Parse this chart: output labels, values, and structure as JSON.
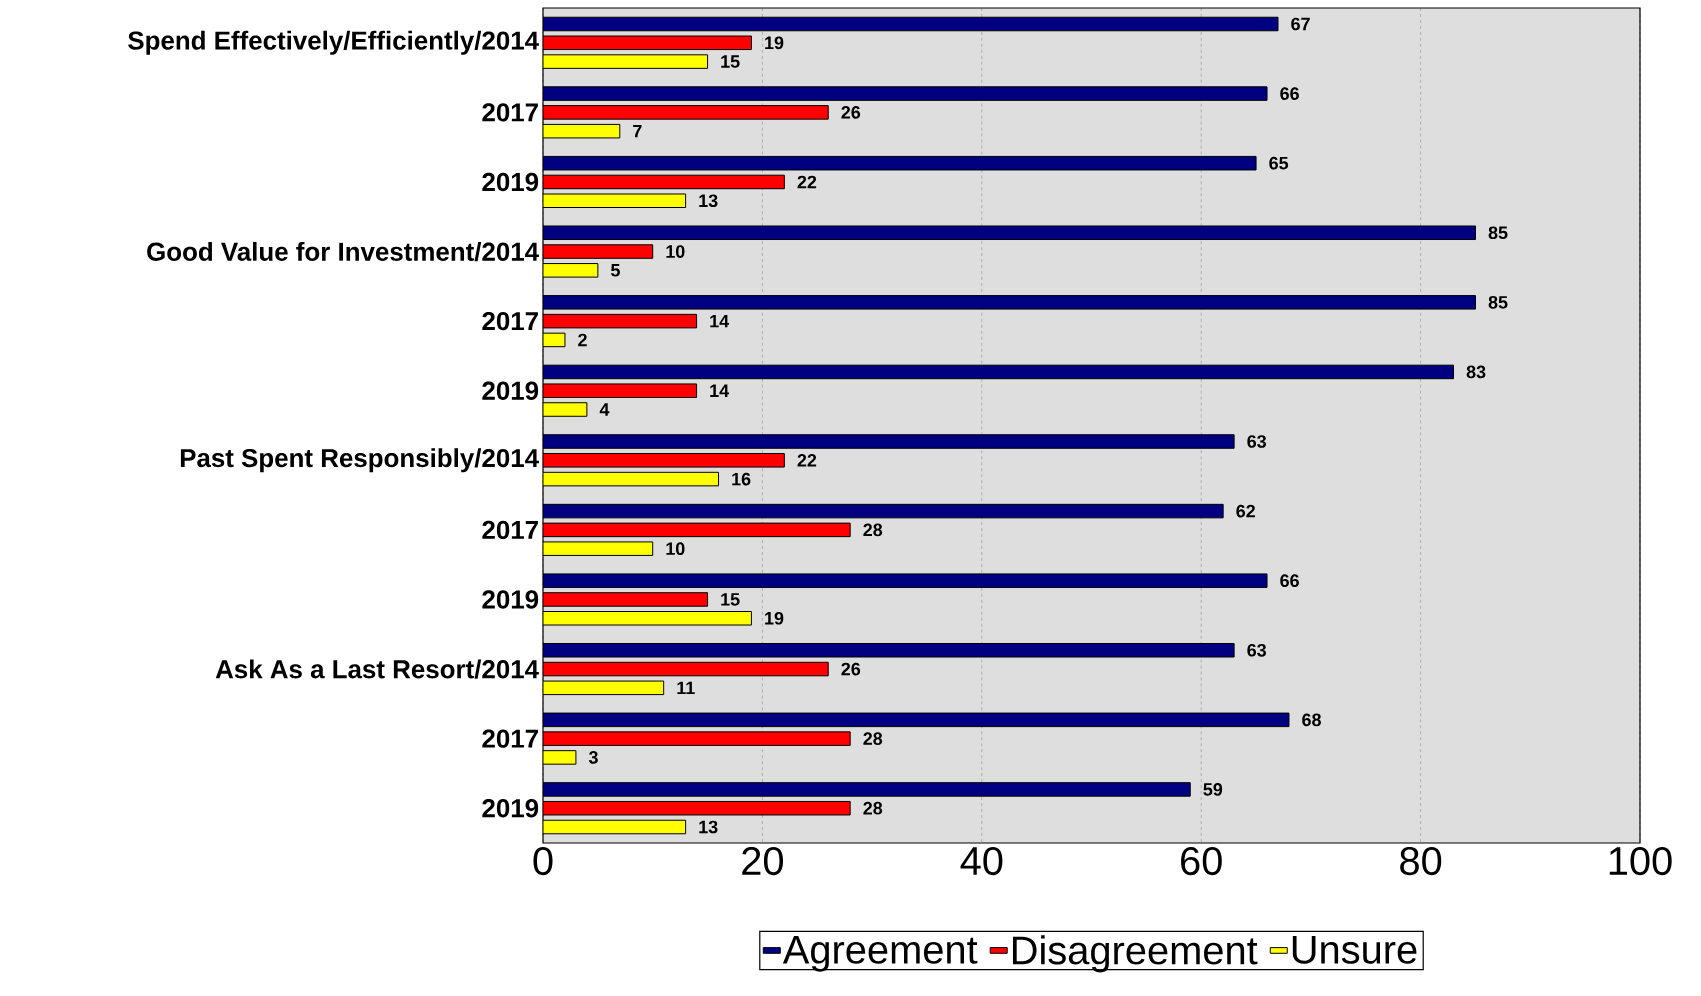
{
  "chart_data": {
    "type": "bar",
    "orientation": "horizontal",
    "categories": [
      "Spend Effectively/Efficiently/2014",
      "2017",
      "2019",
      "Good Value for Investment/2014",
      "2017",
      "2019",
      "Past Spent Responsibly/2014",
      "2017",
      "2019",
      "Ask As a Last Resort/2014",
      "2017",
      "2019"
    ],
    "series": [
      {
        "name": "Agreement",
        "color": "#000080",
        "values": [
          67,
          66,
          65,
          85,
          85,
          83,
          63,
          62,
          66,
          63,
          68,
          59
        ]
      },
      {
        "name": "Disagreement",
        "color": "#ff0000",
        "values": [
          19,
          26,
          22,
          10,
          14,
          14,
          22,
          28,
          15,
          26,
          28,
          28
        ]
      },
      {
        "name": "Unsure",
        "color": "#ffff00",
        "values": [
          15,
          7,
          13,
          5,
          2,
          4,
          16,
          10,
          19,
          11,
          3,
          13
        ]
      }
    ],
    "xlim": [
      0,
      100
    ],
    "xticks": [
      0,
      20,
      40,
      60,
      80,
      100
    ],
    "grid": "x",
    "legend": "bottom",
    "data_labels": true
  }
}
